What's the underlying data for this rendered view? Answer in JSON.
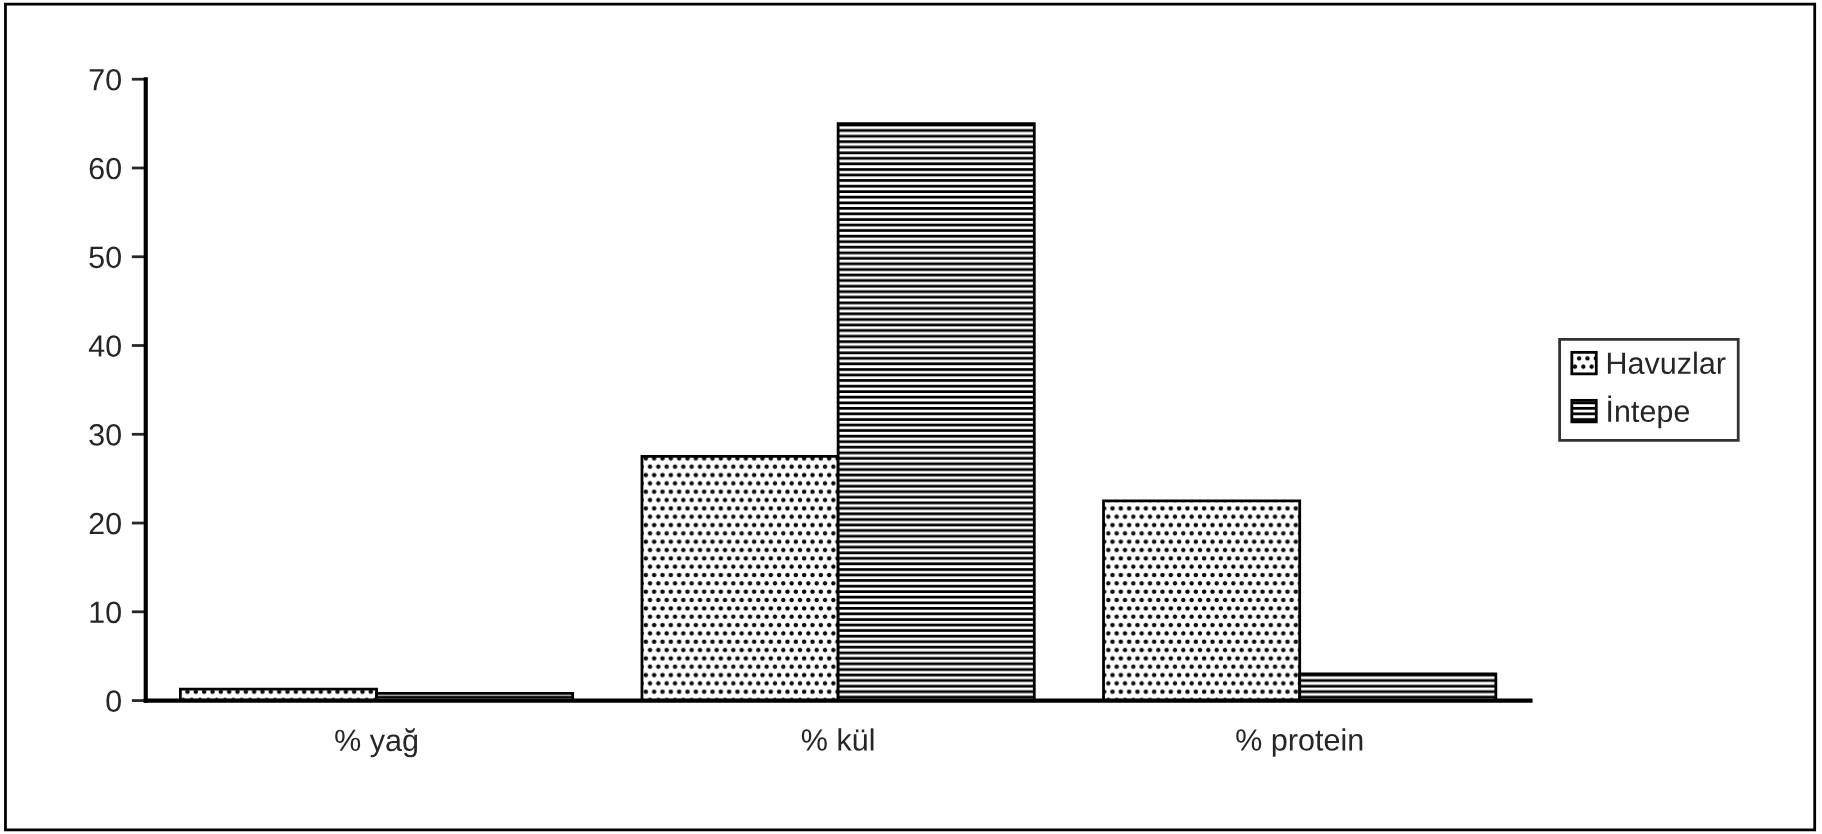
{
  "chart_data": {
    "type": "bar",
    "categories": [
      "% yağ",
      "% kül",
      "% protein"
    ],
    "series": [
      {
        "name": "Havuzlar",
        "color": "#000000",
        "values": [
          1.3,
          27.5,
          22.5
        ]
      },
      {
        "name": "İntepe",
        "color": "#000000",
        "values": [
          0.8,
          65,
          3
        ]
      }
    ],
    "ylim": [
      0,
      70
    ],
    "yticks": [
      0,
      10,
      20,
      30,
      40,
      50,
      60,
      70
    ],
    "grid": false,
    "legend": "right"
  }
}
